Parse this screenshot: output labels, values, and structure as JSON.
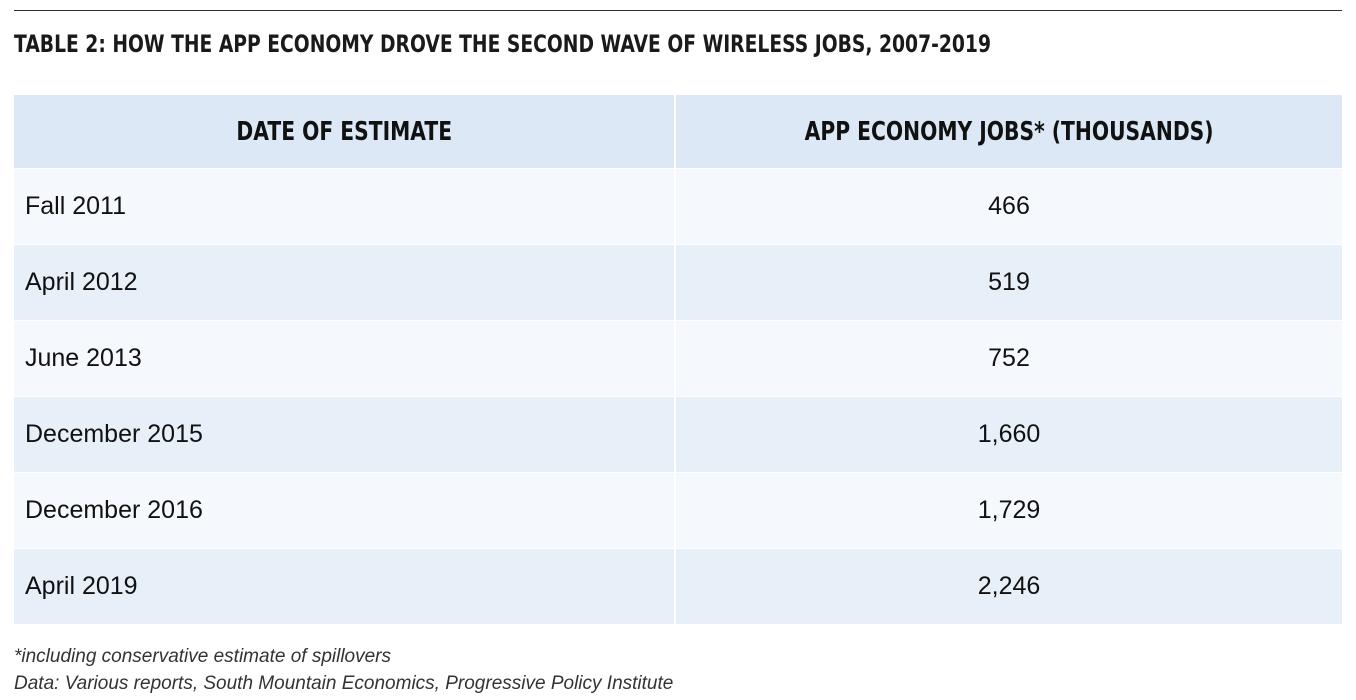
{
  "title": "TABLE 2: HOW THE APP ECONOMY DROVE THE SECOND WAVE OF WIRELESS JOBS, 2007-2019",
  "table": {
    "headers": [
      "DATE OF ESTIMATE",
      "APP ECONOMY JOBS* (THOUSANDS)"
    ],
    "rows": [
      {
        "date": "Fall 2011",
        "jobs": "466"
      },
      {
        "date": "April 2012",
        "jobs": "519"
      },
      {
        "date": "June 2013",
        "jobs": "752"
      },
      {
        "date": "December 2015",
        "jobs": "1,660"
      },
      {
        "date": "December 2016",
        "jobs": "1,729"
      },
      {
        "date": "April 2019",
        "jobs": "2,246"
      }
    ]
  },
  "footnotes": {
    "note": "*including conservative estimate of spillovers",
    "source": "Data: Various reports, South Mountain Economics, Progressive Policy Institute"
  },
  "colors": {
    "header_bg": "#dce8f5",
    "row_light": "#f5f9fd",
    "row_dark": "#e7eff8"
  }
}
